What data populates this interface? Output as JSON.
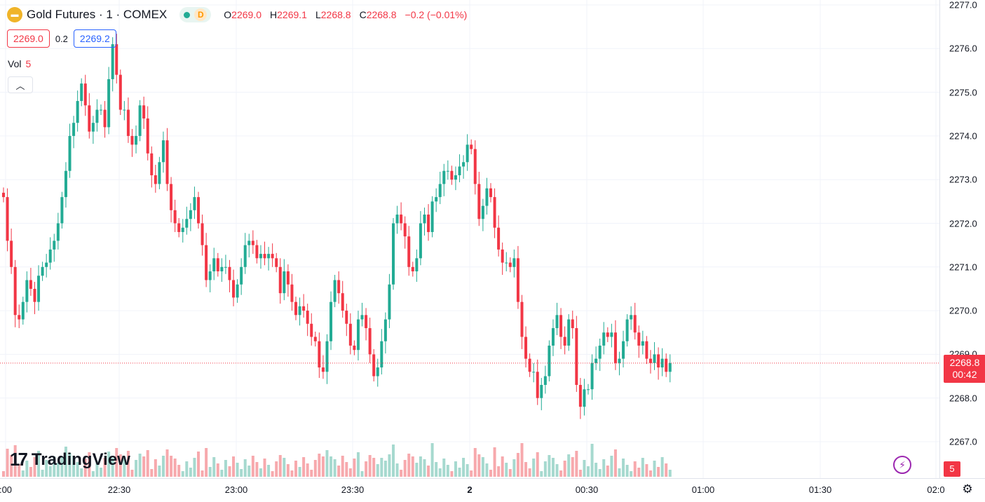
{
  "header": {
    "symbol": "Gold Futures · 1 · COMEX",
    "symbol_icon": "gold-bars-icon",
    "interval_badge": "D",
    "ohlc": {
      "o_label": "O",
      "o": "2269.0",
      "h_label": "H",
      "h": "2269.1",
      "l_label": "L",
      "l": "2268.8",
      "c_label": "C",
      "c": "2268.8",
      "change": "−0.2 (−0.01%)"
    },
    "bid": "2269.0",
    "spread": "0.2",
    "ask": "2269.2",
    "vol_label": "Vol",
    "vol_value": "5",
    "collapse_icon": "chevron-up-icon"
  },
  "branding": {
    "logo_mark": "17",
    "logo_text": "TradingView"
  },
  "last_price": {
    "price": "2268.8",
    "countdown": "00:42",
    "volume": "5"
  },
  "colors": {
    "up": "#22ab94",
    "down": "#f23645",
    "up_vol": "#a6d9cf",
    "down_vol": "#f7a9ad",
    "grid": "#f0f3fa"
  },
  "chart_data": {
    "type": "candlestick",
    "title": "Gold Futures · 1 · COMEX",
    "timeframe": "1 minute",
    "y_ticks": [
      "2277.0",
      "2276.0",
      "2275.0",
      "2274.0",
      "2273.0",
      "2272.0",
      "2271.0",
      "2270.0",
      "2269.0",
      "2268.0",
      "2267.0"
    ],
    "ylim": [
      2266.2,
      2277.0
    ],
    "x_ticks": [
      ":00",
      "22:30",
      "23:00",
      "23:30",
      "2",
      "00:30",
      "01:00",
      "01:30",
      "02:0"
    ],
    "x_ticks_bold": [
      "2"
    ],
    "grid": true,
    "candles_close": [
      2272.6,
      2271.6,
      2271.0,
      2269.9,
      2269.8,
      2270.2,
      2270.7,
      2270.5,
      2270.2,
      2270.8,
      2271.0,
      2271.1,
      2271.4,
      2271.6,
      2272.0,
      2272.6,
      2273.2,
      2274.0,
      2274.3,
      2274.8,
      2275.2,
      2274.7,
      2274.1,
      2274.3,
      2274.6,
      2274.6,
      2274.2,
      2275.3,
      2276.1,
      2275.4,
      2274.6,
      2274.6,
      2274.0,
      2273.8,
      2274.0,
      2274.7,
      2274.4,
      2273.6,
      2273.1,
      2272.9,
      2273.4,
      2273.9,
      2272.9,
      2272.3,
      2272.0,
      2271.8,
      2271.9,
      2272.1,
      2272.3,
      2272.6,
      2272.0,
      2271.5,
      2270.7,
      2270.9,
      2271.2,
      2270.9,
      2271.0,
      2271.0,
      2270.7,
      2270.3,
      2270.6,
      2271.0,
      2271.5,
      2271.6,
      2271.5,
      2271.2,
      2271.3,
      2271.2,
      2271.3,
      2271.2,
      2271.0,
      2270.4,
      2270.9,
      2270.6,
      2270.2,
      2269.9,
      2270.1,
      2270.0,
      2269.7,
      2269.4,
      2269.3,
      2268.7,
      2268.6,
      2269.3,
      2270.2,
      2270.7,
      2270.4,
      2270.0,
      2269.7,
      2269.2,
      2269.1,
      2269.8,
      2269.9,
      2269.6,
      2269.0,
      2268.5,
      2268.7,
      2269.3,
      2269.8,
      2270.6,
      2272.0,
      2272.2,
      2272.0,
      2271.7,
      2271.0,
      2270.9,
      2271.2,
      2272.0,
      2272.2,
      2271.8,
      2272.5,
      2272.6,
      2272.9,
      2273.2,
      2273.2,
      2273.0,
      2273.1,
      2273.3,
      2273.4,
      2273.8,
      2273.7,
      2272.9,
      2272.1,
      2272.4,
      2272.8,
      2272.6,
      2271.9,
      2271.4,
      2271.1,
      2271.1,
      2271.0,
      2271.2,
      2270.2,
      2269.4,
      2268.9,
      2268.6,
      2268.6,
      2268.0,
      2268.3,
      2268.5,
      2269.2,
      2269.6,
      2269.9,
      2269.4,
      2269.2,
      2269.8,
      2269.6,
      2268.3,
      2267.8,
      2268.2,
      2268.2,
      2268.8,
      2268.9,
      2269.2,
      2269.5,
      2269.4,
      2269.5,
      2268.8,
      2268.9,
      2269.3,
      2269.8,
      2269.9,
      2269.5,
      2269.2,
      2269.3,
      2268.9,
      2268.8,
      2269.0,
      2268.7,
      2268.9,
      2268.6,
      2268.8
    ],
    "volume_max_label": "5"
  }
}
